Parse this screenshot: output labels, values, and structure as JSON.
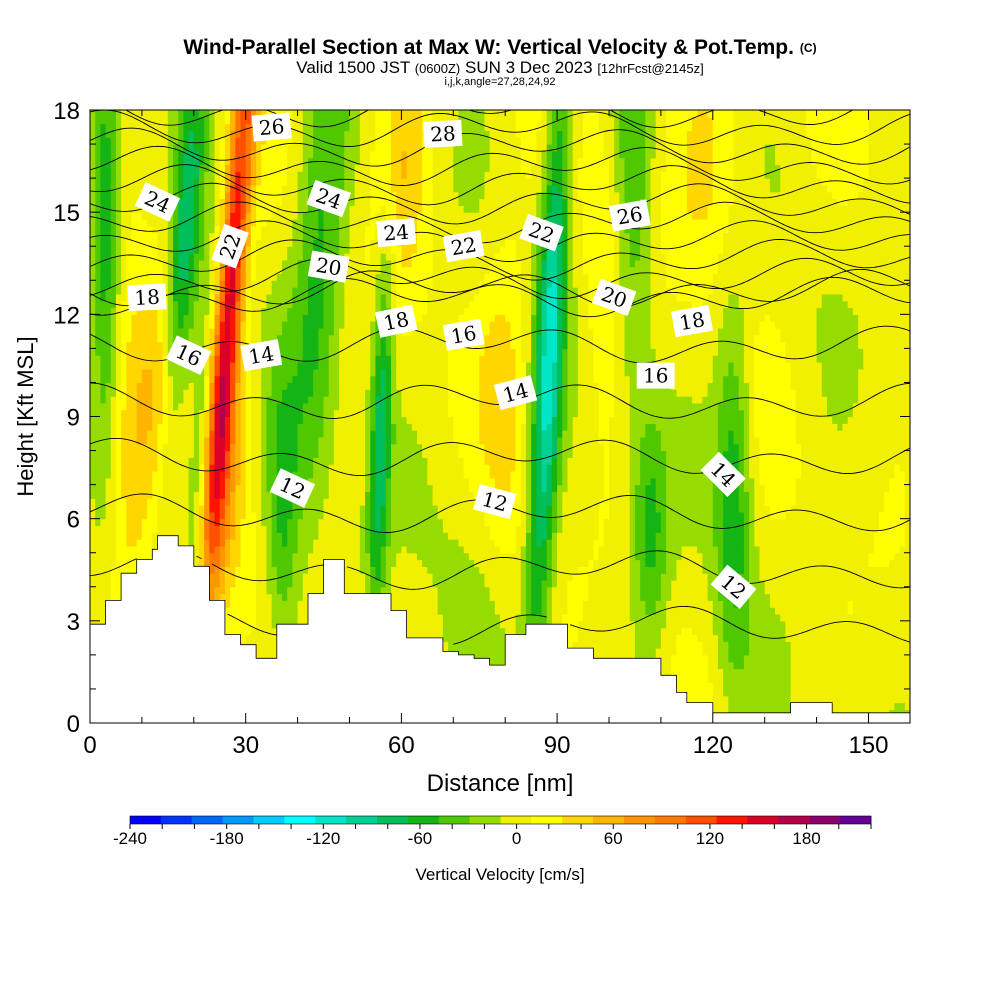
{
  "title": {
    "main": "Wind-Parallel Section at Max W: Vertical Velocity & Pot.Temp.",
    "mark": "(C)",
    "valid_prefix": "Valid 1500 JST",
    "valid_utc": "(0600Z)",
    "valid_date": "SUN 3 Dec 2023",
    "forecast": "[12hrFcst@2145z]",
    "params": "i,j,k,angle=27,28,24,92"
  },
  "chart_data": {
    "type": "heatmap",
    "xlabel": "Distance [nm]",
    "ylabel": "Height [Kft MSL]",
    "xlim": [
      0,
      158
    ],
    "ylim": [
      0,
      18
    ],
    "x_ticks": [
      0,
      30,
      60,
      90,
      120,
      150
    ],
    "y_ticks": [
      0,
      3,
      6,
      9,
      12,
      15,
      18
    ],
    "colorbar": {
      "label": "Vertical Velocity [cm/s]",
      "ticks": [
        -240,
        -180,
        -120,
        -60,
        0,
        60,
        120,
        180
      ],
      "range": [
        -240,
        220
      ],
      "step": 20,
      "colors": [
        "#0000ff",
        "#0033ff",
        "#0066ff",
        "#0099ff",
        "#00ccff",
        "#00ffff",
        "#00e6c8",
        "#00d296",
        "#00be5a",
        "#14b414",
        "#50c800",
        "#96dc00",
        "#f0f000",
        "#ffff00",
        "#ffd700",
        "#ffb400",
        "#ff9600",
        "#ff7800",
        "#ff5000",
        "#ff1400",
        "#dc0028",
        "#b4004b",
        "#8c006e",
        "#640096"
      ]
    },
    "terrain_profile": {
      "x": [
        0,
        3,
        3,
        6,
        6,
        9,
        9,
        12,
        12,
        13,
        13,
        17,
        17,
        20,
        20,
        23,
        23,
        26,
        26,
        29,
        29,
        32,
        32,
        36,
        36,
        42,
        42,
        45,
        45,
        49,
        49,
        58,
        58,
        61,
        61,
        68,
        68,
        71,
        71,
        74,
        74,
        77,
        77,
        80,
        80,
        84,
        84,
        92,
        92,
        97,
        97,
        110,
        110,
        113,
        113,
        115,
        115,
        120,
        120,
        123,
        123,
        135,
        135,
        143,
        143,
        158
      ],
      "y": [
        2.9,
        2.9,
        3.6,
        3.6,
        4.4,
        4.4,
        4.8,
        4.8,
        5.1,
        5.1,
        5.5,
        5.5,
        5.2,
        5.2,
        4.6,
        4.6,
        3.6,
        3.6,
        2.6,
        2.6,
        2.3,
        2.3,
        1.9,
        1.9,
        2.9,
        2.9,
        3.8,
        3.8,
        4.8,
        4.8,
        3.8,
        3.8,
        3.3,
        3.3,
        2.5,
        2.5,
        2.1,
        2.1,
        2.0,
        2.0,
        1.9,
        1.9,
        1.7,
        1.7,
        2.6,
        2.6,
        2.9,
        2.9,
        2.2,
        2.2,
        1.9,
        1.9,
        1.4,
        1.4,
        0.9,
        0.9,
        0.6,
        0.6,
        0.3,
        0.3,
        0.3,
        0.3,
        0.6,
        0.6,
        0.3,
        0.3
      ]
    },
    "w_features": [
      {
        "x": 27,
        "z": 12.5,
        "sx": 1.8,
        "sz": 6.0,
        "amp": 150,
        "tilt": 0.5
      },
      {
        "x": 26,
        "z": 7.0,
        "sx": 3.2,
        "sz": 3.5,
        "amp": 50,
        "tilt": 0.4
      },
      {
        "x": 18,
        "z": 13.5,
        "sx": 2.0,
        "sz": 5.0,
        "amp": -80,
        "tilt": 0.45
      },
      {
        "x": 21,
        "z": 8.0,
        "sx": 1.6,
        "sz": 3.0,
        "amp": -60,
        "tilt": 0.3
      },
      {
        "x": 3,
        "z": 14.0,
        "sx": 2.0,
        "sz": 5.0,
        "amp": -70,
        "tilt": 0.0
      },
      {
        "x": 7,
        "z": 7.5,
        "sx": 3.5,
        "sz": 3.5,
        "amp": 45,
        "tilt": 0.0
      },
      {
        "x": 44,
        "z": 13.0,
        "sx": 3.5,
        "sz": 5.0,
        "amp": -60,
        "tilt": 0.3
      },
      {
        "x": 56,
        "z": 8.5,
        "sx": 1.5,
        "sz": 4.5,
        "amp": -80,
        "tilt": 0.2
      },
      {
        "x": 37,
        "z": 6.0,
        "sx": 2.2,
        "sz": 3.0,
        "amp": -50,
        "tilt": 0.0
      },
      {
        "x": 60,
        "z": 16.5,
        "sx": 3.5,
        "sz": 3.0,
        "amp": 45,
        "tilt": 0.0
      },
      {
        "x": 80,
        "z": 10.0,
        "sx": 3.5,
        "sz": 3.5,
        "amp": 35,
        "tilt": 0.0
      },
      {
        "x": 88.5,
        "z": 11.0,
        "sx": 2.0,
        "sz": 7.0,
        "amp": -110,
        "tilt": 0.3
      },
      {
        "x": 104,
        "z": 15.0,
        "sx": 3.0,
        "sz": 4.0,
        "amp": -55,
        "tilt": 0.0
      },
      {
        "x": 100,
        "z": 14.0,
        "sx": 3.0,
        "sz": 3.5,
        "amp": 35,
        "tilt": 0.0
      },
      {
        "x": 108,
        "z": 5.5,
        "sx": 2.5,
        "sz": 2.5,
        "amp": -55,
        "tilt": 0.0
      },
      {
        "x": 124,
        "z": 7.0,
        "sx": 2.5,
        "sz": 4.0,
        "amp": -65,
        "tilt": 0.0
      },
      {
        "x": 13,
        "z": 9.5,
        "sx": 3.5,
        "sz": 3.0,
        "amp": 40,
        "tilt": 0.0
      },
      {
        "x": 120,
        "z": 16.5,
        "sx": 6.0,
        "sz": 2.5,
        "amp": 30,
        "tilt": 0.0
      },
      {
        "x": 74,
        "z": 5.0,
        "sx": 6.0,
        "sz": 3.0,
        "amp": -12,
        "tilt": 0.0
      }
    ],
    "theta_contour_levels": [
      10,
      11,
      12,
      13,
      14,
      15,
      16,
      17,
      18,
      19,
      20,
      21,
      22,
      23,
      24,
      25,
      26,
      27,
      28
    ],
    "contour_labels": [
      {
        "text": "26",
        "x": 35,
        "z": 17.5,
        "angle": -5
      },
      {
        "text": "28",
        "x": 68,
        "z": 17.3,
        "angle": -3
      },
      {
        "text": "24",
        "x": 13,
        "z": 15.3,
        "angle": 25
      },
      {
        "text": "22",
        "x": 27,
        "z": 14.0,
        "angle": -70
      },
      {
        "text": "24",
        "x": 46,
        "z": 15.4,
        "angle": 20
      },
      {
        "text": "24",
        "x": 59,
        "z": 14.4,
        "angle": -5
      },
      {
        "text": "22",
        "x": 72,
        "z": 14.0,
        "angle": -10
      },
      {
        "text": "22",
        "x": 87,
        "z": 14.4,
        "angle": 20
      },
      {
        "text": "26",
        "x": 104,
        "z": 14.9,
        "angle": -10
      },
      {
        "text": "20",
        "x": 46,
        "z": 13.4,
        "angle": 10
      },
      {
        "text": "18",
        "x": 11,
        "z": 12.5,
        "angle": -3
      },
      {
        "text": "18",
        "x": 59,
        "z": 11.8,
        "angle": -12
      },
      {
        "text": "16",
        "x": 72,
        "z": 11.4,
        "angle": -10
      },
      {
        "text": "20",
        "x": 101,
        "z": 12.5,
        "angle": 20
      },
      {
        "text": "18",
        "x": 116,
        "z": 11.8,
        "angle": -10
      },
      {
        "text": "16",
        "x": 19,
        "z": 10.8,
        "angle": 25
      },
      {
        "text": "14",
        "x": 33,
        "z": 10.8,
        "angle": -10
      },
      {
        "text": "16",
        "x": 109,
        "z": 10.2,
        "angle": 0
      },
      {
        "text": "14",
        "x": 82,
        "z": 9.7,
        "angle": -15
      },
      {
        "text": "14",
        "x": 122,
        "z": 7.3,
        "angle": 45
      },
      {
        "text": "12",
        "x": 39,
        "z": 6.9,
        "angle": 25
      },
      {
        "text": "12",
        "x": 78,
        "z": 6.5,
        "angle": 15
      },
      {
        "text": "12",
        "x": 124,
        "z": 4.0,
        "angle": 40
      }
    ]
  }
}
